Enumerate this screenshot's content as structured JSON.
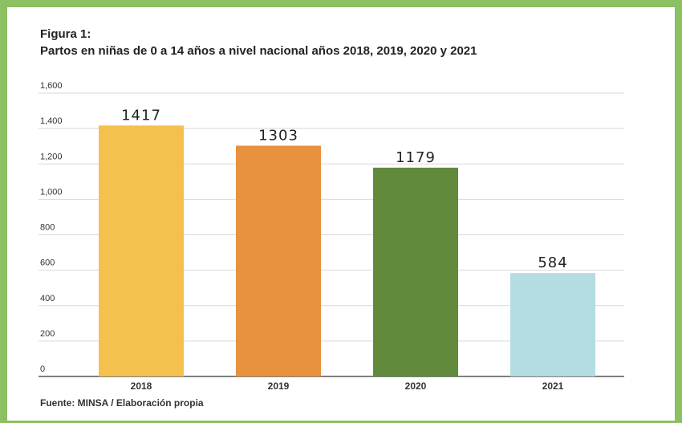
{
  "figure": {
    "label": "Figura 1:",
    "title": "Partos en niñas de 0 a 14 años a nivel nacional años 2018, 2019, 2020 y 2021",
    "source": "Fuente: MINSA / Elaboración propia"
  },
  "chart_data": {
    "type": "bar",
    "categories": [
      "2018",
      "2019",
      "2020",
      "2021"
    ],
    "values": [
      1417,
      1303,
      1179,
      584
    ],
    "data_labels": [
      "1417",
      "1303",
      "1179",
      "584"
    ],
    "colors": [
      "#f4c04e",
      "#e8913f",
      "#628a3c",
      "#b3dde0"
    ],
    "ylim": [
      0,
      1600
    ],
    "yticks": [
      0,
      200,
      400,
      600,
      800,
      1000,
      1200,
      1400,
      1600
    ],
    "ytick_labels": [
      "0",
      "200",
      "400",
      "600",
      "800",
      "1,000",
      "1,200",
      "1,400",
      "1,600"
    ],
    "grid": true,
    "legend": false
  }
}
